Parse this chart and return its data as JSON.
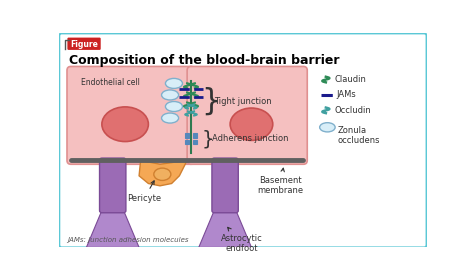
{
  "title": "Composition of the blood-brain barrier",
  "figure_label": "Figure",
  "background_color": "#ffffff",
  "border_color": "#5bc8d6",
  "cell_fill": "#f5c0c0",
  "cell_stroke": "#e09090",
  "nucleus_fill": "#e07070",
  "nucleus_stroke": "#c85050",
  "basement_color": "#808080",
  "pericyte_fill": "#f5a855",
  "pericyte_stroke": "#d08030",
  "foot_fill": "#9b6bb5",
  "foot_stroke": "#7a4a96",
  "foot_fill_light": "#b088cc",
  "tight_junction_color": "#2e8b57",
  "jams_color": "#1a1a8c",
  "adherens_color": "#5588bb",
  "zonula_fill": "#d8eef8",
  "zonula_stroke": "#80b0cc",
  "claudin_color": "#2e8b57",
  "occludin_color": "#40a0a0",
  "label_color": "#333333",
  "footnote": "JAMs: junction adhesion molecules"
}
